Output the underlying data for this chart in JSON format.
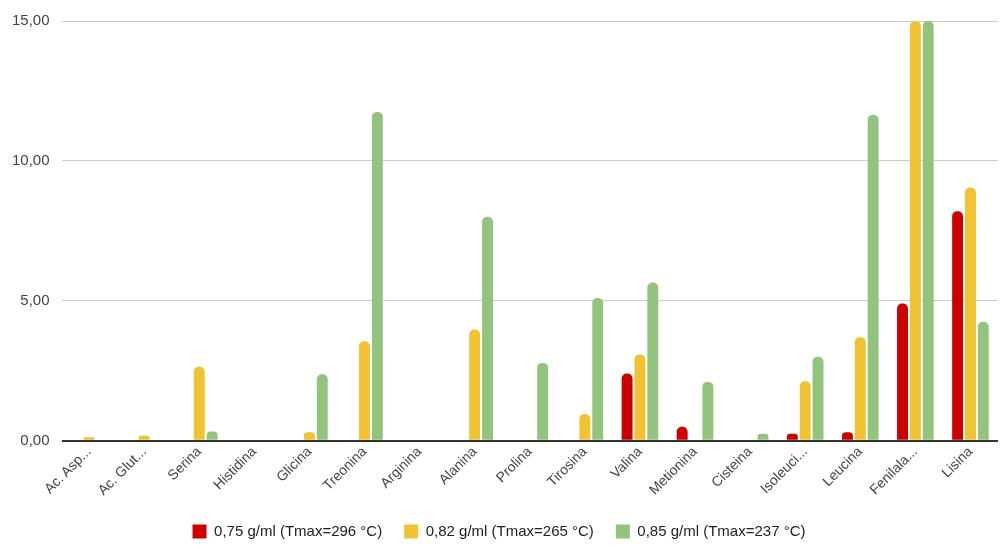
{
  "chart_data": {
    "type": "bar",
    "categories": [
      "Ac. Asp...",
      "Ac. Glut...",
      "Serina",
      "Histidina",
      "Glicina",
      "Treonina",
      "Arginina",
      "Alanina",
      "Prolina",
      "Tirosina",
      "Valina",
      "Metionina",
      "Cisteina",
      "Isoleuci...",
      "Leucina",
      "Fenilala...",
      "Lisina"
    ],
    "series": [
      {
        "name": "0,75 g/ml (Tmax=296 °C)",
        "color": "#cc0000",
        "values": [
          null,
          null,
          null,
          null,
          null,
          null,
          null,
          null,
          null,
          null,
          2.4,
          0.5,
          null,
          0.25,
          0.3,
          4.9,
          8.2
        ]
      },
      {
        "name": "0,82 g/ml (Tmax=265 °C)",
        "color": "#f1c232",
        "values": [
          0.12,
          0.18,
          2.65,
          null,
          0.3,
          3.55,
          null,
          3.97,
          null,
          0.95,
          3.08,
          null,
          null,
          2.12,
          3.7,
          15,
          9.05
        ]
      },
      {
        "name": "0,85 g/ml (Tmax=237 °C)",
        "color": "#93c47d",
        "values": [
          null,
          null,
          0.33,
          null,
          2.37,
          11.75,
          null,
          8.0,
          2.78,
          5.1,
          5.65,
          2.1,
          0.25,
          3.0,
          11.65,
          15,
          4.25
        ]
      }
    ],
    "ylim": [
      0,
      15
    ],
    "yticks": [
      {
        "value": 0,
        "label": "0,00"
      },
      {
        "value": 5,
        "label": "5,00"
      },
      {
        "value": 10,
        "label": "10,00"
      },
      {
        "value": 15,
        "label": "15,00"
      }
    ],
    "grid": "y",
    "legend": "bottom"
  }
}
